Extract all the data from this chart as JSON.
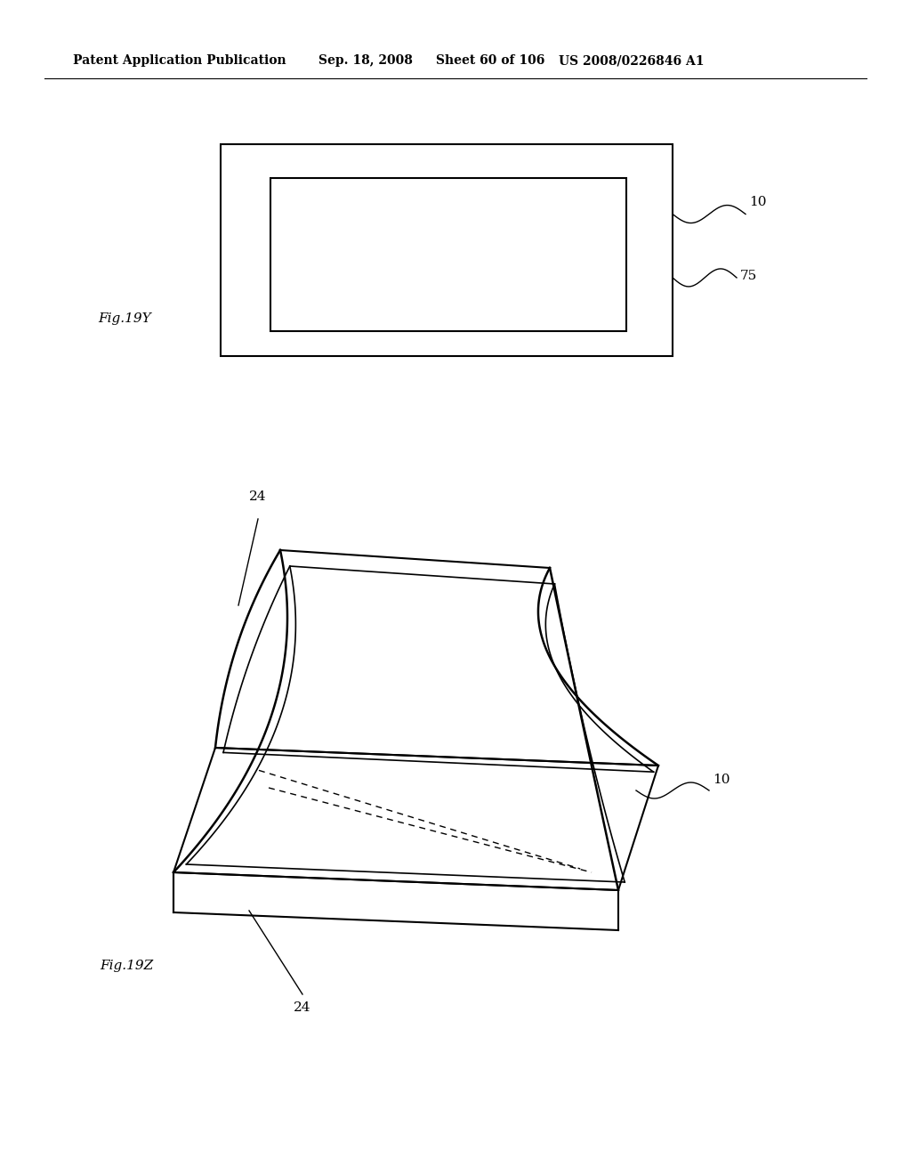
{
  "bg_color": "#ffffff",
  "header_text": "Patent Application Publication",
  "header_date": "Sep. 18, 2008",
  "header_sheet": "Sheet 60 of 106",
  "header_patent": "US 2008/0226846 A1",
  "fig_label_19Y": "Fig.19Y",
  "fig_label_19Z": "Fig.19Z",
  "label_10_top": "10",
  "label_75": "75",
  "label_24_top": "24",
  "label_10_bot": "10",
  "label_24_bot": "24",
  "line_color": "#000000",
  "line_width": 1.5
}
